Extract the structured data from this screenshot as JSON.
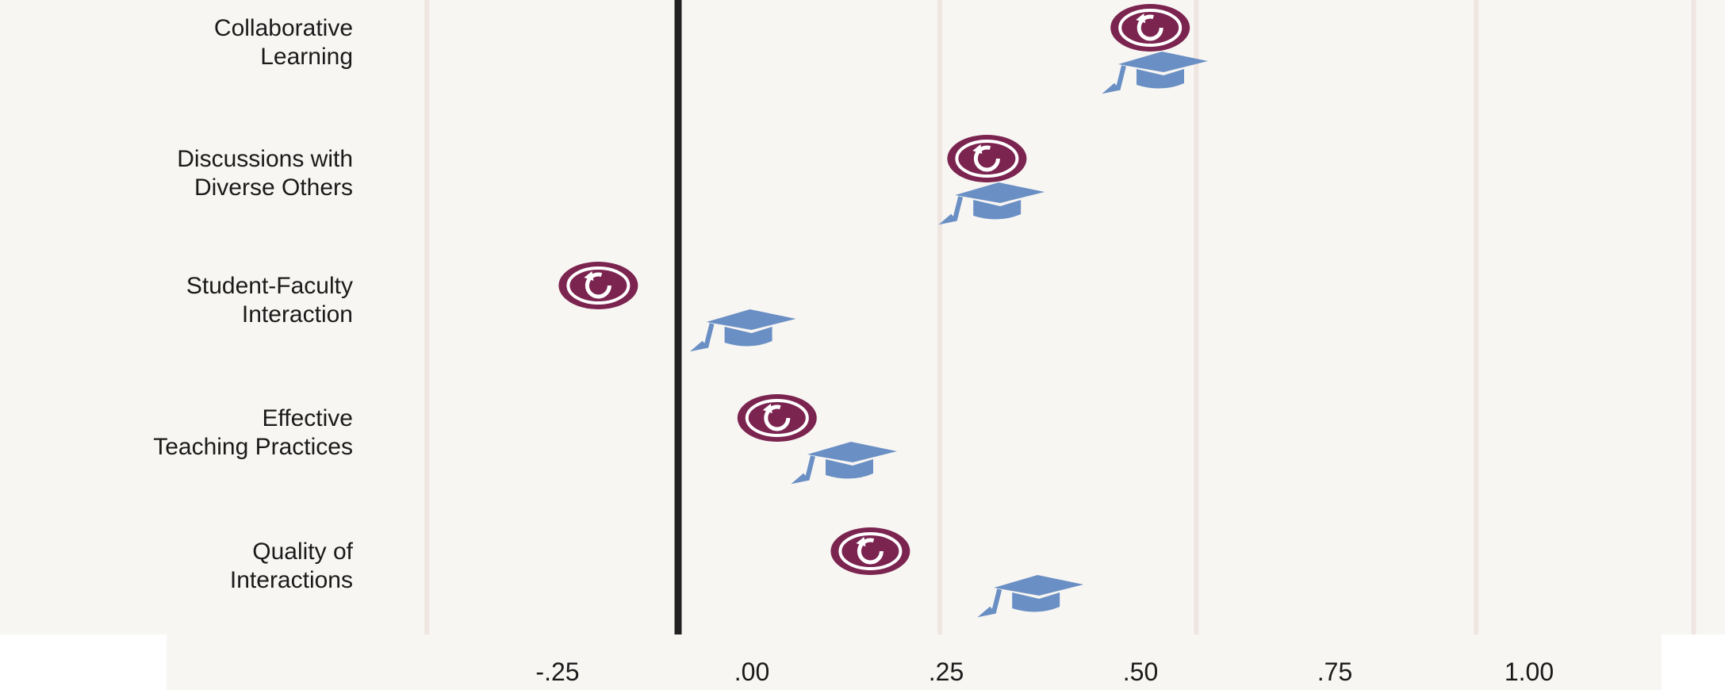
{
  "colors": {
    "background": "#f8f6f3",
    "axis_strip": "#f8f6f3",
    "gridline": "#efe5e1",
    "zero_line": "#222222",
    "series_a": "#7b2450",
    "series_b": "#6a8fc4"
  },
  "chart_data": {
    "type": "scatter",
    "title": "",
    "xlabel": "",
    "ylabel": "",
    "xlim": [
      -0.42,
      1.25
    ],
    "xticks": [
      -0.25,
      0,
      0.25,
      0.5,
      0.75,
      1.0
    ],
    "xtick_labels": [
      "-.25",
      ".00",
      ".25",
      ".50",
      ".75",
      "1.00"
    ],
    "grid": true,
    "categories": [
      [
        "Collaborative",
        "Learning"
      ],
      [
        "Discussions with",
        "Diverse Others"
      ],
      [
        "Student-Faculty",
        "Interaction"
      ],
      [
        "Effective",
        "Teaching Practices"
      ],
      [
        "Quality of",
        "Interactions"
      ]
    ],
    "series": [
      {
        "icon": "circular-arrow-icon",
        "color": "#7b2450",
        "values": [
          0.49,
          0.28,
          -0.22,
          0.01,
          0.13
        ]
      },
      {
        "icon": "graduation-cap-icon",
        "color": "#6a8fc4",
        "values": [
          0.5,
          0.29,
          -0.03,
          0.1,
          0.34
        ]
      }
    ]
  }
}
